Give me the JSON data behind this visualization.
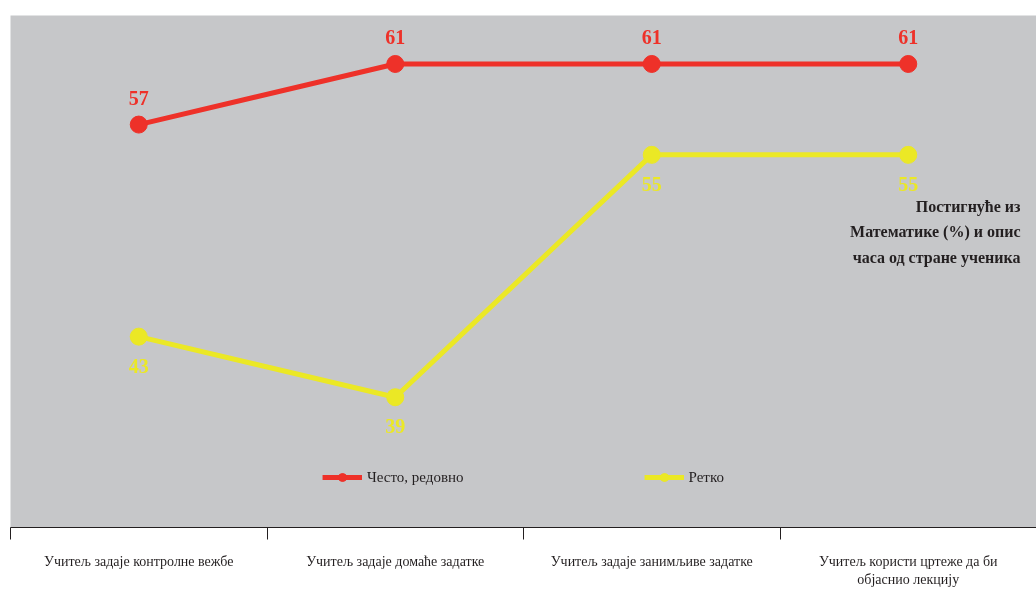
{
  "chart_data": {
    "type": "line",
    "title": "Постигнуће из Математике (%) и опис часа од стране ученика",
    "categories": [
      "Учитељ задаје контролне вежбе",
      "Учитељ задаје домаће задатке",
      "Учитељ задаје занимљиве задатке",
      "Учитељ користи цртеже да би објаснио лекцију"
    ],
    "series": [
      {
        "name": "Често, редовно",
        "color": "#ee3129",
        "values": [
          57,
          61,
          61,
          61
        ]
      },
      {
        "name": "Ретко",
        "color": "#ebe825",
        "values": [
          43,
          39,
          55,
          55
        ]
      }
    ],
    "ylim": [
      30.4,
      64.2
    ],
    "data_labels": true,
    "legend": "bottom",
    "marker": "circle",
    "grid": false
  }
}
